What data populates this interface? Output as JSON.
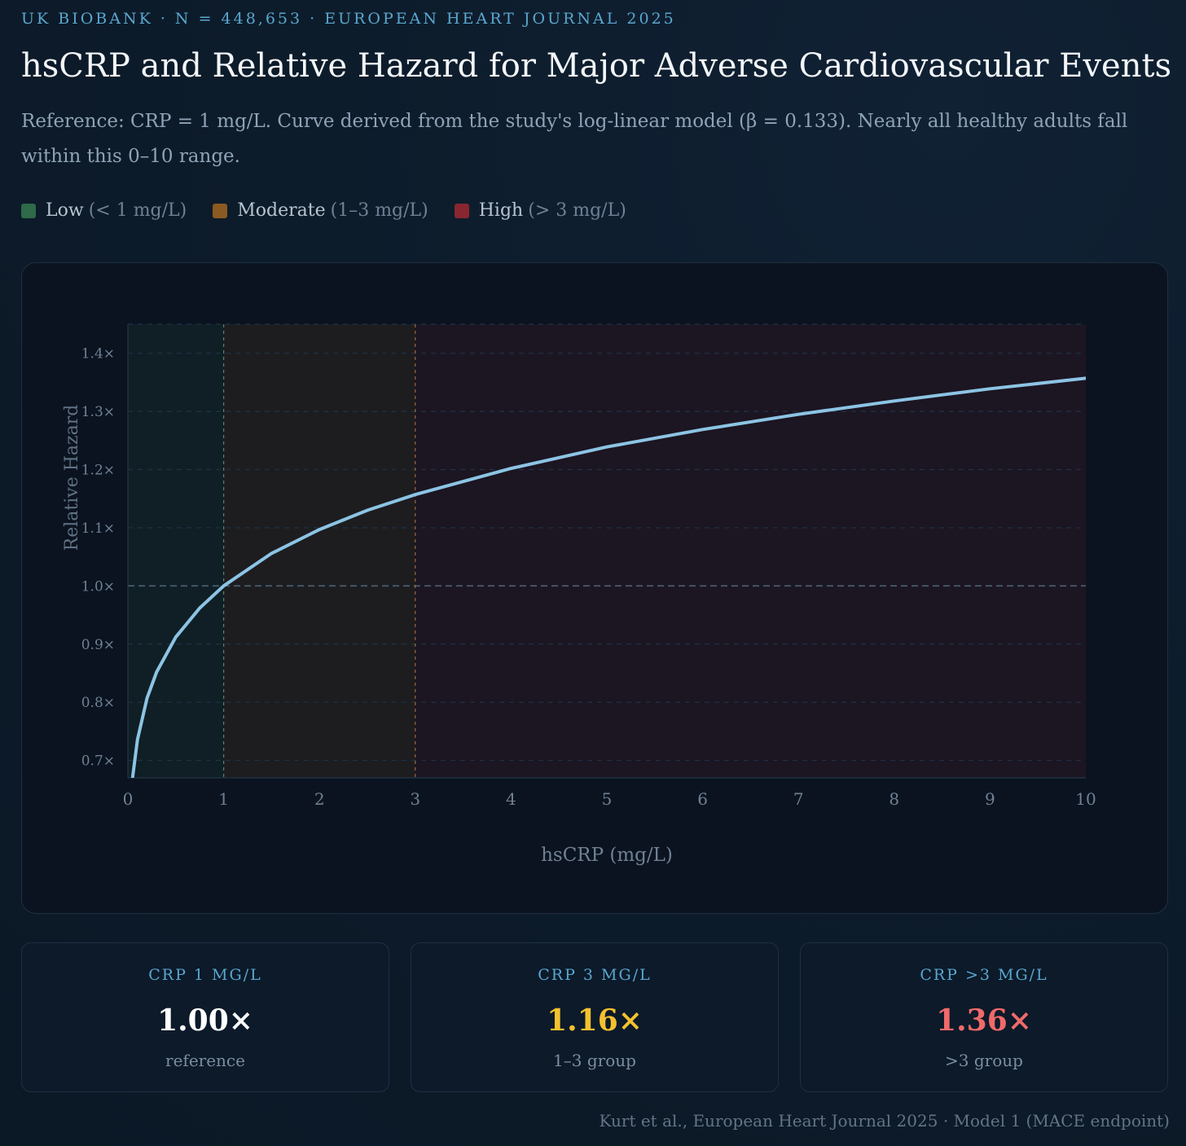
{
  "header": {
    "eyebrow": "UK BIOBANK · N = 448,653 · EUROPEAN HEART JOURNAL 2025",
    "title": "hsCRP and Relative Hazard for Major Adverse Cardiovascular Events",
    "subtitle": "Reference: CRP = 1 mg/L. Curve derived from the study's log-linear model (β = 0.133). Nearly all healthy adults fall within this 0–10 range."
  },
  "legend": [
    {
      "name": "Low",
      "range": "(< 1 mg/L)",
      "color": "#2f6a4a"
    },
    {
      "name": "Moderate",
      "range": "(1–3 mg/L)",
      "color": "#8b5a22"
    },
    {
      "name": "High",
      "range": "(> 3 mg/L)",
      "color": "#8a2630"
    }
  ],
  "chart_data": {
    "type": "line",
    "xlabel": "hsCRP (mg/L)",
    "ylabel": "Relative Hazard",
    "xlim": [
      0,
      10
    ],
    "ylim": [
      0.67,
      1.45
    ],
    "x_ticks": [
      0,
      1,
      2,
      3,
      4,
      5,
      6,
      7,
      8,
      9,
      10
    ],
    "y_ticks": [
      0.7,
      0.8,
      0.9,
      1.0,
      1.1,
      1.2,
      1.3,
      1.4
    ],
    "y_tick_suffix": "×",
    "reference_line": 1.0,
    "zone_bounds": [
      1,
      3
    ],
    "zones": [
      {
        "name": "Low",
        "from": 0,
        "to": 1,
        "color": "#2f6a4a"
      },
      {
        "name": "Moderate",
        "from": 1,
        "to": 3,
        "color": "#8b5a22"
      },
      {
        "name": "High",
        "from": 3,
        "to": 10,
        "color": "#8a2630"
      }
    ],
    "line_color": "#8cc4e4",
    "series": [
      {
        "x": [
          0.05,
          0.1,
          0.2,
          0.3,
          0.5,
          0.75,
          1,
          1.5,
          2,
          2.5,
          3,
          4,
          5,
          6,
          7,
          8,
          9,
          10
        ],
        "values": [
          0.672,
          0.736,
          0.807,
          0.852,
          0.912,
          0.962,
          1.0,
          1.056,
          1.097,
          1.13,
          1.157,
          1.202,
          1.239,
          1.269,
          1.295,
          1.318,
          1.339,
          1.357
        ]
      }
    ]
  },
  "cards": [
    {
      "label": "CRP 1 MG/L",
      "value": "1.00×",
      "note": "reference",
      "color": "#ffffff"
    },
    {
      "label": "CRP 3 MG/L",
      "value": "1.16×",
      "note": "1–3 group",
      "color": "#f5c12e"
    },
    {
      "label": "CRP >3 MG/L",
      "value": "1.36×",
      "note": ">3 group",
      "color": "#f06a6a"
    }
  ],
  "source": "Kurt et al., European Heart Journal 2025 · Model 1 (MACE endpoint)"
}
